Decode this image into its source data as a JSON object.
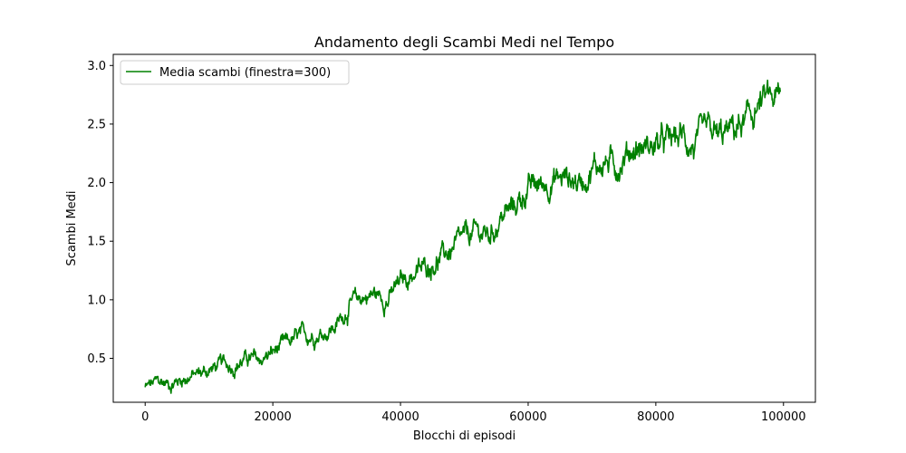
{
  "chart_data": {
    "type": "line",
    "title": "Andamento degli Scambi Medi nel Tempo",
    "xlabel": "Blocchi di episodi",
    "ylabel": "Scambi Medi",
    "xlim": [
      -5000,
      105000
    ],
    "ylim": [
      0.125,
      3.095
    ],
    "xticks": [
      0,
      20000,
      40000,
      60000,
      80000,
      100000
    ],
    "xtick_labels": [
      "0",
      "20000",
      "40000",
      "60000",
      "80000",
      "100000"
    ],
    "yticks": [
      0.5,
      1.0,
      1.5,
      2.0,
      2.5,
      3.0
    ],
    "ytick_labels": [
      "0.5",
      "1.0",
      "1.5",
      "2.0",
      "2.5",
      "3.0"
    ],
    "grid": false,
    "legend_position": "top-left",
    "series": [
      {
        "name": "Media scambi (finestra=300)",
        "color": "#008000",
        "x": [
          0,
          2000,
          4000,
          6000,
          8000,
          10000,
          12000,
          14000,
          16000,
          18000,
          20000,
          22000,
          24000,
          26000,
          28000,
          30000,
          32000,
          34000,
          36000,
          38000,
          40000,
          42000,
          44000,
          46000,
          48000,
          50000,
          52000,
          54000,
          56000,
          58000,
          60000,
          62000,
          64000,
          66000,
          68000,
          70000,
          72000,
          74000,
          76000,
          78000,
          80000,
          82000,
          84000,
          86000,
          88000,
          90000,
          92000,
          94000,
          96000,
          98000,
          99500
        ],
        "y": [
          0.25,
          0.3,
          0.28,
          0.33,
          0.36,
          0.4,
          0.45,
          0.44,
          0.5,
          0.48,
          0.55,
          0.62,
          0.68,
          0.7,
          0.72,
          0.78,
          0.95,
          1.02,
          1.05,
          1.0,
          1.15,
          1.22,
          1.28,
          1.35,
          1.42,
          1.52,
          1.58,
          1.55,
          1.72,
          1.8,
          1.95,
          1.98,
          2.02,
          2.05,
          2.0,
          2.12,
          2.18,
          2.15,
          2.28,
          2.3,
          2.32,
          2.35,
          2.4,
          2.3,
          2.42,
          2.38,
          2.45,
          2.5,
          2.65,
          2.72,
          2.7
        ]
      }
    ]
  }
}
